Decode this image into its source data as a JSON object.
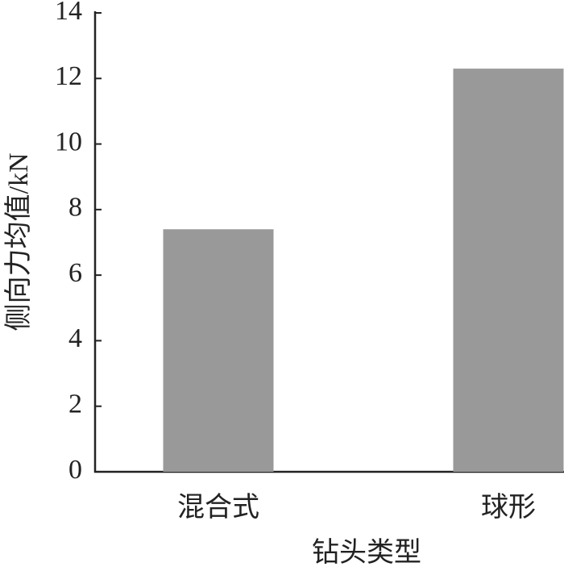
{
  "chart_data": {
    "type": "bar",
    "x_label": "钻头类型",
    "y_label": "侧向力均值/kN",
    "categories": [
      "混合式",
      "球形"
    ],
    "values": [
      7.4,
      12.3
    ],
    "color": "#999999",
    "ylim": [
      0,
      14
    ],
    "yticks": [
      0,
      2,
      4,
      6,
      8,
      10,
      12,
      14
    ],
    "grid": false
  }
}
